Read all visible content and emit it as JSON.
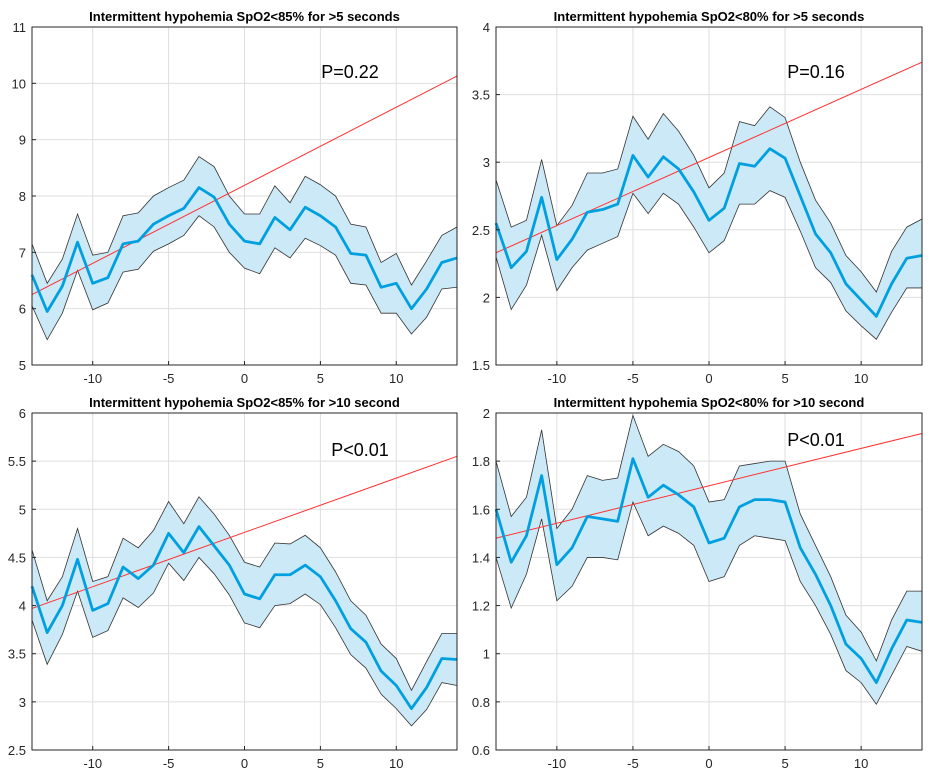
{
  "chart_data": [
    {
      "type": "line",
      "title": "Intermittent hypohemia SpO2<85% for >5 seconds",
      "annotation": "P=0.22",
      "xlim": [
        -14,
        14
      ],
      "ylim": [
        5,
        11
      ],
      "xticks": [
        -10,
        -5,
        0,
        5,
        10
      ],
      "yticks": [
        5,
        6,
        7,
        8,
        9,
        10,
        11
      ],
      "grid": true,
      "x": [
        -14,
        -13,
        -12,
        -11,
        -10,
        -9,
        -8,
        -7,
        -6,
        -5,
        -4,
        -3,
        -2,
        -1,
        0,
        1,
        2,
        3,
        4,
        5,
        6,
        7,
        8,
        9,
        10,
        11,
        12,
        13,
        14
      ],
      "series": [
        {
          "role": "mean",
          "color": "#00a0e0",
          "values": [
            6.6,
            5.95,
            6.4,
            7.18,
            6.45,
            6.55,
            7.15,
            7.2,
            7.5,
            7.65,
            7.78,
            8.15,
            7.98,
            7.5,
            7.2,
            7.15,
            7.62,
            7.4,
            7.8,
            7.65,
            7.45,
            6.98,
            6.95,
            6.38,
            6.45,
            6.0,
            6.35,
            6.82,
            6.9
          ]
        },
        {
          "role": "upper",
          "color": "#333333",
          "values": [
            7.15,
            6.45,
            6.88,
            7.68,
            6.95,
            7.0,
            7.65,
            7.7,
            8.0,
            8.15,
            8.28,
            8.7,
            8.52,
            8.0,
            7.68,
            7.68,
            8.18,
            7.88,
            8.35,
            8.2,
            8.0,
            7.5,
            7.45,
            6.82,
            6.98,
            6.42,
            6.85,
            7.3,
            7.45
          ]
        },
        {
          "role": "lower",
          "color": "#333333",
          "values": [
            6.05,
            5.45,
            5.92,
            6.68,
            5.98,
            6.1,
            6.65,
            6.7,
            7.02,
            7.15,
            7.3,
            7.65,
            7.45,
            7.0,
            6.72,
            6.62,
            7.08,
            6.9,
            7.25,
            7.12,
            6.95,
            6.45,
            6.42,
            5.92,
            5.92,
            5.55,
            5.85,
            6.35,
            6.38
          ]
        },
        {
          "role": "trend",
          "color": "#ff3030",
          "x": [
            -14,
            14
          ],
          "values": [
            6.25,
            10.13
          ]
        }
      ]
    },
    {
      "type": "line",
      "title": "Intermittent hypohemia SpO2<80% for >5 seconds",
      "annotation": "P=0.16",
      "xlim": [
        -14,
        14
      ],
      "ylim": [
        1.5,
        4
      ],
      "xticks": [
        -10,
        -5,
        0,
        5,
        10
      ],
      "yticks": [
        1.5,
        2,
        2.5,
        3,
        3.5,
        4
      ],
      "grid": true,
      "x": [
        -14,
        -13,
        -12,
        -11,
        -10,
        -9,
        -8,
        -7,
        -6,
        -5,
        -4,
        -3,
        -2,
        -1,
        0,
        1,
        2,
        3,
        4,
        5,
        6,
        7,
        8,
        9,
        10,
        11,
        12,
        13,
        14
      ],
      "series": [
        {
          "role": "mean",
          "color": "#00a0e0",
          "values": [
            2.55,
            2.22,
            2.34,
            2.74,
            2.28,
            2.43,
            2.63,
            2.65,
            2.69,
            3.05,
            2.89,
            3.04,
            2.95,
            2.78,
            2.57,
            2.66,
            2.99,
            2.97,
            3.1,
            3.03,
            2.75,
            2.47,
            2.33,
            2.1,
            1.98,
            1.86,
            2.1,
            2.29,
            2.31
          ]
        },
        {
          "role": "upper",
          "color": "#333333",
          "values": [
            2.87,
            2.52,
            2.57,
            3.02,
            2.53,
            2.68,
            2.92,
            2.92,
            2.95,
            3.34,
            3.17,
            3.36,
            3.23,
            3.05,
            2.81,
            2.92,
            3.3,
            3.27,
            3.41,
            3.33,
            3.0,
            2.72,
            2.55,
            2.31,
            2.19,
            2.04,
            2.34,
            2.52,
            2.58
          ]
        },
        {
          "role": "lower",
          "color": "#333333",
          "values": [
            2.3,
            1.91,
            2.09,
            2.46,
            2.05,
            2.22,
            2.35,
            2.4,
            2.45,
            2.77,
            2.62,
            2.77,
            2.69,
            2.52,
            2.33,
            2.42,
            2.69,
            2.69,
            2.79,
            2.74,
            2.49,
            2.22,
            2.11,
            1.9,
            1.79,
            1.69,
            1.89,
            2.07,
            2.07
          ]
        },
        {
          "role": "trend",
          "color": "#ff3030",
          "x": [
            -14,
            14
          ],
          "values": [
            2.33,
            3.74
          ]
        }
      ]
    },
    {
      "type": "line",
      "title": "Intermittent hypohemia SpO2<85% for >10 second",
      "annotation": "P<0.01",
      "xlim": [
        -14,
        14
      ],
      "ylim": [
        2.5,
        6
      ],
      "xticks": [
        -10,
        -5,
        0,
        5,
        10
      ],
      "yticks": [
        2.5,
        3,
        3.5,
        4,
        4.5,
        5,
        5.5,
        6
      ],
      "grid": true,
      "x": [
        -14,
        -13,
        -12,
        -11,
        -10,
        -9,
        -8,
        -7,
        -6,
        -5,
        -4,
        -3,
        -2,
        -1,
        0,
        1,
        2,
        3,
        4,
        5,
        6,
        7,
        8,
        9,
        10,
        11,
        12,
        13,
        14
      ],
      "series": [
        {
          "role": "mean",
          "color": "#00a0e0",
          "values": [
            4.2,
            3.72,
            4.0,
            4.48,
            3.95,
            4.02,
            4.4,
            4.28,
            4.42,
            4.75,
            4.55,
            4.82,
            4.62,
            4.42,
            4.12,
            4.07,
            4.32,
            4.32,
            4.42,
            4.3,
            4.05,
            3.76,
            3.62,
            3.32,
            3.17,
            2.93,
            3.15,
            3.45,
            3.44
          ]
        },
        {
          "role": "upper",
          "color": "#333333",
          "values": [
            4.58,
            4.05,
            4.3,
            4.8,
            4.25,
            4.3,
            4.7,
            4.6,
            4.78,
            5.08,
            4.85,
            5.13,
            4.95,
            4.73,
            4.45,
            4.4,
            4.65,
            4.64,
            4.73,
            4.6,
            4.35,
            4.05,
            3.9,
            3.6,
            3.45,
            3.12,
            3.42,
            3.71,
            3.71
          ]
        },
        {
          "role": "lower",
          "color": "#333333",
          "values": [
            3.85,
            3.39,
            3.7,
            4.15,
            3.67,
            3.74,
            4.08,
            3.98,
            4.13,
            4.44,
            4.26,
            4.5,
            4.33,
            4.11,
            3.82,
            3.77,
            4.0,
            4.02,
            4.12,
            4.01,
            3.77,
            3.49,
            3.35,
            3.08,
            2.93,
            2.75,
            2.92,
            3.2,
            3.17
          ]
        },
        {
          "role": "trend",
          "color": "#ff3030",
          "x": [
            -14,
            14
          ],
          "values": [
            3.97,
            5.55
          ]
        }
      ]
    },
    {
      "type": "line",
      "title": "Intermittent hypohemia SpO2<80% for >10 second",
      "annotation": "P<0.01",
      "xlim": [
        -14,
        14
      ],
      "ylim": [
        0.6,
        2
      ],
      "xticks": [
        -10,
        -5,
        0,
        5,
        10
      ],
      "yticks": [
        0.6,
        0.8,
        1,
        1.2,
        1.4,
        1.6,
        1.8,
        2
      ],
      "grid": true,
      "x": [
        -14,
        -13,
        -12,
        -11,
        -10,
        -9,
        -8,
        -7,
        -6,
        -5,
        -4,
        -3,
        -2,
        -1,
        0,
        1,
        2,
        3,
        4,
        5,
        6,
        7,
        8,
        9,
        10,
        11,
        12,
        13,
        14
      ],
      "series": [
        {
          "role": "mean",
          "color": "#00a0e0",
          "values": [
            1.6,
            1.38,
            1.49,
            1.74,
            1.37,
            1.44,
            1.57,
            1.56,
            1.55,
            1.81,
            1.65,
            1.7,
            1.66,
            1.61,
            1.46,
            1.48,
            1.61,
            1.64,
            1.64,
            1.63,
            1.44,
            1.33,
            1.2,
            1.04,
            0.98,
            0.88,
            1.02,
            1.14,
            1.13
          ]
        },
        {
          "role": "upper",
          "color": "#333333",
          "values": [
            1.8,
            1.57,
            1.65,
            1.93,
            1.52,
            1.6,
            1.74,
            1.72,
            1.73,
            1.99,
            1.82,
            1.87,
            1.84,
            1.78,
            1.63,
            1.64,
            1.78,
            1.79,
            1.8,
            1.8,
            1.58,
            1.45,
            1.32,
            1.16,
            1.09,
            0.97,
            1.14,
            1.26,
            1.26
          ]
        },
        {
          "role": "lower",
          "color": "#333333",
          "values": [
            1.4,
            1.19,
            1.33,
            1.56,
            1.22,
            1.28,
            1.4,
            1.4,
            1.39,
            1.63,
            1.49,
            1.53,
            1.5,
            1.45,
            1.3,
            1.32,
            1.45,
            1.49,
            1.48,
            1.47,
            1.3,
            1.2,
            1.08,
            0.93,
            0.88,
            0.79,
            0.91,
            1.03,
            1.01
          ]
        },
        {
          "role": "trend",
          "color": "#ff3030",
          "x": [
            -14,
            14
          ],
          "values": [
            1.48,
            1.915
          ]
        }
      ]
    }
  ]
}
